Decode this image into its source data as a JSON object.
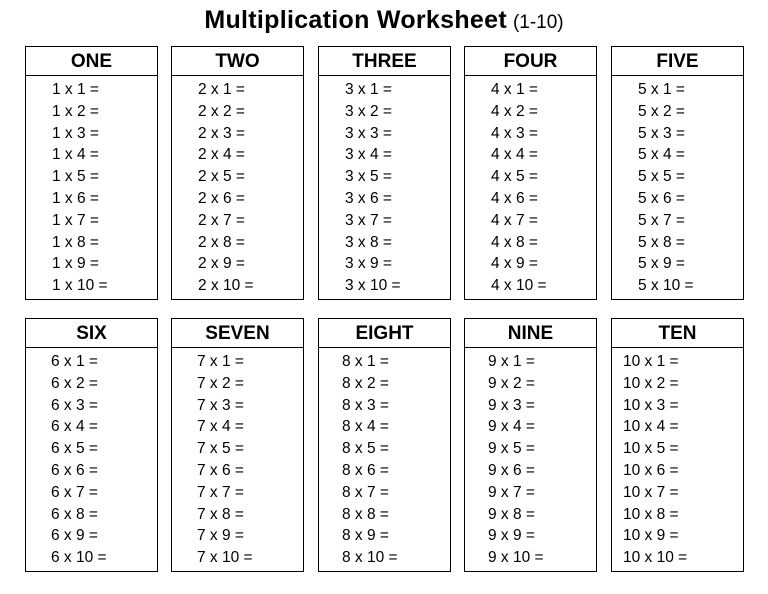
{
  "title": {
    "main": "Multiplication Worksheet",
    "sub": "(1-10)"
  },
  "boxes": [
    {
      "heading": "ONE",
      "rows": [
        "1 x 1 =",
        "1 x 2 =",
        "1 x 3 =",
        "1 x 4 =",
        "1 x 5 =",
        "1 x 6 =",
        "1 x 7 =",
        "1 x 8 =",
        "1 x 9 =",
        "1 x 10 ="
      ]
    },
    {
      "heading": "TWO",
      "rows": [
        "2 x 1 =",
        "2 x 2 =",
        "2 x 3 =",
        "2 x 4 =",
        "2 x 5 =",
        "2 x 6 =",
        "2 x 7 =",
        "2 x 8 =",
        "2 x 9 =",
        "2 x 10 ="
      ]
    },
    {
      "heading": "THREE",
      "rows": [
        "3 x 1 =",
        "3 x 2 =",
        "3 x 3 =",
        "3 x 4 =",
        "3 x 5 =",
        "3 x 6 =",
        "3 x 7 =",
        "3 x 8 =",
        "3 x 9 =",
        "3 x 10 ="
      ]
    },
    {
      "heading": "FOUR",
      "rows": [
        "4 x 1 =",
        "4 x 2 =",
        "4 x 3 =",
        "4 x 4 =",
        "4 x 5 =",
        "4 x 6 =",
        "4 x 7 =",
        "4 x 8 =",
        "4 x 9 =",
        "4 x 10 ="
      ]
    },
    {
      "heading": "FIVE",
      "rows": [
        "5 x 1 =",
        "5 x 2 =",
        "5 x 3 =",
        "5 x 4 =",
        "5 x 5 =",
        "5 x 6 =",
        "5 x 7 =",
        "5 x 8 =",
        "5 x 9 =",
        "5 x 10 ="
      ]
    },
    {
      "heading": "SIX",
      "rows": [
        "6 x 1 =",
        "6 x 2 =",
        "6 x 3 =",
        "6 x 4 =",
        "6 x 5 =",
        "6 x 6 =",
        "6 x 7 =",
        "6 x 8 =",
        "6 x 9 =",
        "6 x 10 ="
      ]
    },
    {
      "heading": "SEVEN",
      "rows": [
        "7 x 1 =",
        "7 x 2 =",
        "7 x 3 =",
        "7 x 4 =",
        "7 x 5 =",
        "7 x 6 =",
        "7 x 7 =",
        "7 x 8 =",
        "7 x 9 =",
        "7 x 10 ="
      ]
    },
    {
      "heading": "EIGHT",
      "rows": [
        "8 x 1 =",
        "8 x 2 =",
        "8 x 3 =",
        "8 x 4 =",
        "8 x 5 =",
        "8 x 6 =",
        "8 x 7 =",
        "8 x 8 =",
        "8 x 9 =",
        "8 x 10 ="
      ]
    },
    {
      "heading": "NINE",
      "rows": [
        "9 x 1 =",
        "9 x 2 =",
        "9 x 3 =",
        "9 x 4 =",
        "9 x 5 =",
        "9 x 6 =",
        "9 x 7 =",
        "9 x 8 =",
        "9 x 9 =",
        "9 x 10 ="
      ]
    },
    {
      "heading": "TEN",
      "rows": [
        "10 x 1 =",
        "10 x 2 =",
        "10 x 3 =",
        "10 x 4 =",
        "10 x 5 =",
        "10 x 6 =",
        "10 x 7 =",
        "10 x 8 =",
        "10 x 9 =",
        "10 x 10 ="
      ]
    }
  ]
}
